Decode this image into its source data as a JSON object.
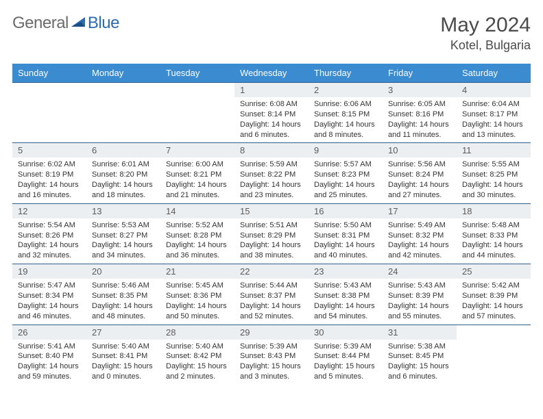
{
  "brand": {
    "part1": "General",
    "part2": "Blue"
  },
  "title": {
    "month_year": "May 2024",
    "location": "Kotel, Bulgaria"
  },
  "colors": {
    "header_bg": "#3b8bd0",
    "header_fg": "#ffffff",
    "daynum_bg": "#eceff2",
    "row_border": "#2e5f8f",
    "text": "#333333",
    "brand_gray": "#6b6b6b",
    "brand_blue": "#2b6bb0"
  },
  "weekdays": [
    "Sunday",
    "Monday",
    "Tuesday",
    "Wednesday",
    "Thursday",
    "Friday",
    "Saturday"
  ],
  "weeks": [
    [
      {
        "n": "",
        "lines": []
      },
      {
        "n": "",
        "lines": []
      },
      {
        "n": "",
        "lines": []
      },
      {
        "n": "1",
        "lines": [
          "Sunrise: 6:08 AM",
          "Sunset: 8:14 PM",
          "Daylight: 14 hours and 6 minutes."
        ]
      },
      {
        "n": "2",
        "lines": [
          "Sunrise: 6:06 AM",
          "Sunset: 8:15 PM",
          "Daylight: 14 hours and 8 minutes."
        ]
      },
      {
        "n": "3",
        "lines": [
          "Sunrise: 6:05 AM",
          "Sunset: 8:16 PM",
          "Daylight: 14 hours and 11 minutes."
        ]
      },
      {
        "n": "4",
        "lines": [
          "Sunrise: 6:04 AM",
          "Sunset: 8:17 PM",
          "Daylight: 14 hours and 13 minutes."
        ]
      }
    ],
    [
      {
        "n": "5",
        "lines": [
          "Sunrise: 6:02 AM",
          "Sunset: 8:19 PM",
          "Daylight: 14 hours and 16 minutes."
        ]
      },
      {
        "n": "6",
        "lines": [
          "Sunrise: 6:01 AM",
          "Sunset: 8:20 PM",
          "Daylight: 14 hours and 18 minutes."
        ]
      },
      {
        "n": "7",
        "lines": [
          "Sunrise: 6:00 AM",
          "Sunset: 8:21 PM",
          "Daylight: 14 hours and 21 minutes."
        ]
      },
      {
        "n": "8",
        "lines": [
          "Sunrise: 5:59 AM",
          "Sunset: 8:22 PM",
          "Daylight: 14 hours and 23 minutes."
        ]
      },
      {
        "n": "9",
        "lines": [
          "Sunrise: 5:57 AM",
          "Sunset: 8:23 PM",
          "Daylight: 14 hours and 25 minutes."
        ]
      },
      {
        "n": "10",
        "lines": [
          "Sunrise: 5:56 AM",
          "Sunset: 8:24 PM",
          "Daylight: 14 hours and 27 minutes."
        ]
      },
      {
        "n": "11",
        "lines": [
          "Sunrise: 5:55 AM",
          "Sunset: 8:25 PM",
          "Daylight: 14 hours and 30 minutes."
        ]
      }
    ],
    [
      {
        "n": "12",
        "lines": [
          "Sunrise: 5:54 AM",
          "Sunset: 8:26 PM",
          "Daylight: 14 hours and 32 minutes."
        ]
      },
      {
        "n": "13",
        "lines": [
          "Sunrise: 5:53 AM",
          "Sunset: 8:27 PM",
          "Daylight: 14 hours and 34 minutes."
        ]
      },
      {
        "n": "14",
        "lines": [
          "Sunrise: 5:52 AM",
          "Sunset: 8:28 PM",
          "Daylight: 14 hours and 36 minutes."
        ]
      },
      {
        "n": "15",
        "lines": [
          "Sunrise: 5:51 AM",
          "Sunset: 8:29 PM",
          "Daylight: 14 hours and 38 minutes."
        ]
      },
      {
        "n": "16",
        "lines": [
          "Sunrise: 5:50 AM",
          "Sunset: 8:31 PM",
          "Daylight: 14 hours and 40 minutes."
        ]
      },
      {
        "n": "17",
        "lines": [
          "Sunrise: 5:49 AM",
          "Sunset: 8:32 PM",
          "Daylight: 14 hours and 42 minutes."
        ]
      },
      {
        "n": "18",
        "lines": [
          "Sunrise: 5:48 AM",
          "Sunset: 8:33 PM",
          "Daylight: 14 hours and 44 minutes."
        ]
      }
    ],
    [
      {
        "n": "19",
        "lines": [
          "Sunrise: 5:47 AM",
          "Sunset: 8:34 PM",
          "Daylight: 14 hours and 46 minutes."
        ]
      },
      {
        "n": "20",
        "lines": [
          "Sunrise: 5:46 AM",
          "Sunset: 8:35 PM",
          "Daylight: 14 hours and 48 minutes."
        ]
      },
      {
        "n": "21",
        "lines": [
          "Sunrise: 5:45 AM",
          "Sunset: 8:36 PM",
          "Daylight: 14 hours and 50 minutes."
        ]
      },
      {
        "n": "22",
        "lines": [
          "Sunrise: 5:44 AM",
          "Sunset: 8:37 PM",
          "Daylight: 14 hours and 52 minutes."
        ]
      },
      {
        "n": "23",
        "lines": [
          "Sunrise: 5:43 AM",
          "Sunset: 8:38 PM",
          "Daylight: 14 hours and 54 minutes."
        ]
      },
      {
        "n": "24",
        "lines": [
          "Sunrise: 5:43 AM",
          "Sunset: 8:39 PM",
          "Daylight: 14 hours and 55 minutes."
        ]
      },
      {
        "n": "25",
        "lines": [
          "Sunrise: 5:42 AM",
          "Sunset: 8:39 PM",
          "Daylight: 14 hours and 57 minutes."
        ]
      }
    ],
    [
      {
        "n": "26",
        "lines": [
          "Sunrise: 5:41 AM",
          "Sunset: 8:40 PM",
          "Daylight: 14 hours and 59 minutes."
        ]
      },
      {
        "n": "27",
        "lines": [
          "Sunrise: 5:40 AM",
          "Sunset: 8:41 PM",
          "Daylight: 15 hours and 0 minutes."
        ]
      },
      {
        "n": "28",
        "lines": [
          "Sunrise: 5:40 AM",
          "Sunset: 8:42 PM",
          "Daylight: 15 hours and 2 minutes."
        ]
      },
      {
        "n": "29",
        "lines": [
          "Sunrise: 5:39 AM",
          "Sunset: 8:43 PM",
          "Daylight: 15 hours and 3 minutes."
        ]
      },
      {
        "n": "30",
        "lines": [
          "Sunrise: 5:39 AM",
          "Sunset: 8:44 PM",
          "Daylight: 15 hours and 5 minutes."
        ]
      },
      {
        "n": "31",
        "lines": [
          "Sunrise: 5:38 AM",
          "Sunset: 8:45 PM",
          "Daylight: 15 hours and 6 minutes."
        ]
      },
      {
        "n": "",
        "lines": []
      }
    ]
  ]
}
